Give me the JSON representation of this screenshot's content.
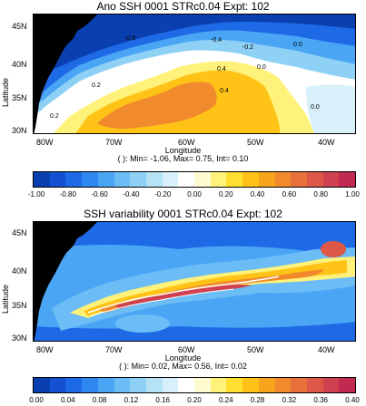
{
  "panel1": {
    "title": "Ano SSH 0001 STRc0.04 Expt: 102",
    "ylabel": "Latitude",
    "xlabel": "Longitude",
    "lat_ticks": [
      "45N",
      "40N",
      "35N",
      "30N"
    ],
    "lon_ticks": [
      "80W",
      "70W",
      "60W",
      "50W",
      "40W"
    ],
    "stats": "( ): Min= -1.06, Max= 0.75, Int= 0.10",
    "contour_labels": [
      "-0.6",
      "-0.4",
      "-0.2",
      "0.0",
      "0.2",
      "0.4",
      "0.4",
      "0.0",
      "0.0",
      "0.2"
    ],
    "colorbar_ticks": [
      "-1.00",
      "-0.80",
      "-0.60",
      "-0.40",
      "-0.20",
      "0.00",
      "0.20",
      "0.40",
      "0.60",
      "0.80",
      "1.00"
    ],
    "colors": [
      "#0a3fb0",
      "#1450cf",
      "#1e6ae6",
      "#2f88f0",
      "#4aa6f5",
      "#6cbdf5",
      "#8fd0f5",
      "#b5e2f5",
      "#d8f0fa",
      "#ffffff",
      "#fffbd0",
      "#fff27a",
      "#ffe030",
      "#ffc318",
      "#f7a51c",
      "#f08a2c",
      "#e8703a",
      "#dd5846",
      "#cf4150",
      "#c02a52"
    ]
  },
  "panel2": {
    "title": "SSH variability 0001 STRc0.04 Expt: 102",
    "ylabel": "Latitude",
    "xlabel": "Longitude",
    "lat_ticks": [
      "45N",
      "40N",
      "35N",
      "30N"
    ],
    "lon_ticks": [
      "80W",
      "70W",
      "60W",
      "50W",
      "40W"
    ],
    "stats": "( ): Min= 0.02, Max= 0.56, Int= 0.02",
    "colorbar_ticks": [
      "0.00",
      "0.04",
      "0.08",
      "0.12",
      "0.16",
      "0.20",
      "0.24",
      "0.28",
      "0.32",
      "0.36",
      "0.40"
    ],
    "colors": [
      "#0a3fb0",
      "#1450cf",
      "#1e6ae6",
      "#2f88f0",
      "#4aa6f5",
      "#6cbdf5",
      "#8fd0f5",
      "#b5e2f5",
      "#d8f0fa",
      "#ffffff",
      "#fffbd0",
      "#fff27a",
      "#ffe030",
      "#ffc318",
      "#f7a51c",
      "#f08a2c",
      "#e8703a",
      "#dd5846",
      "#cf4150",
      "#c02a52"
    ]
  },
  "land_color": "#000000"
}
